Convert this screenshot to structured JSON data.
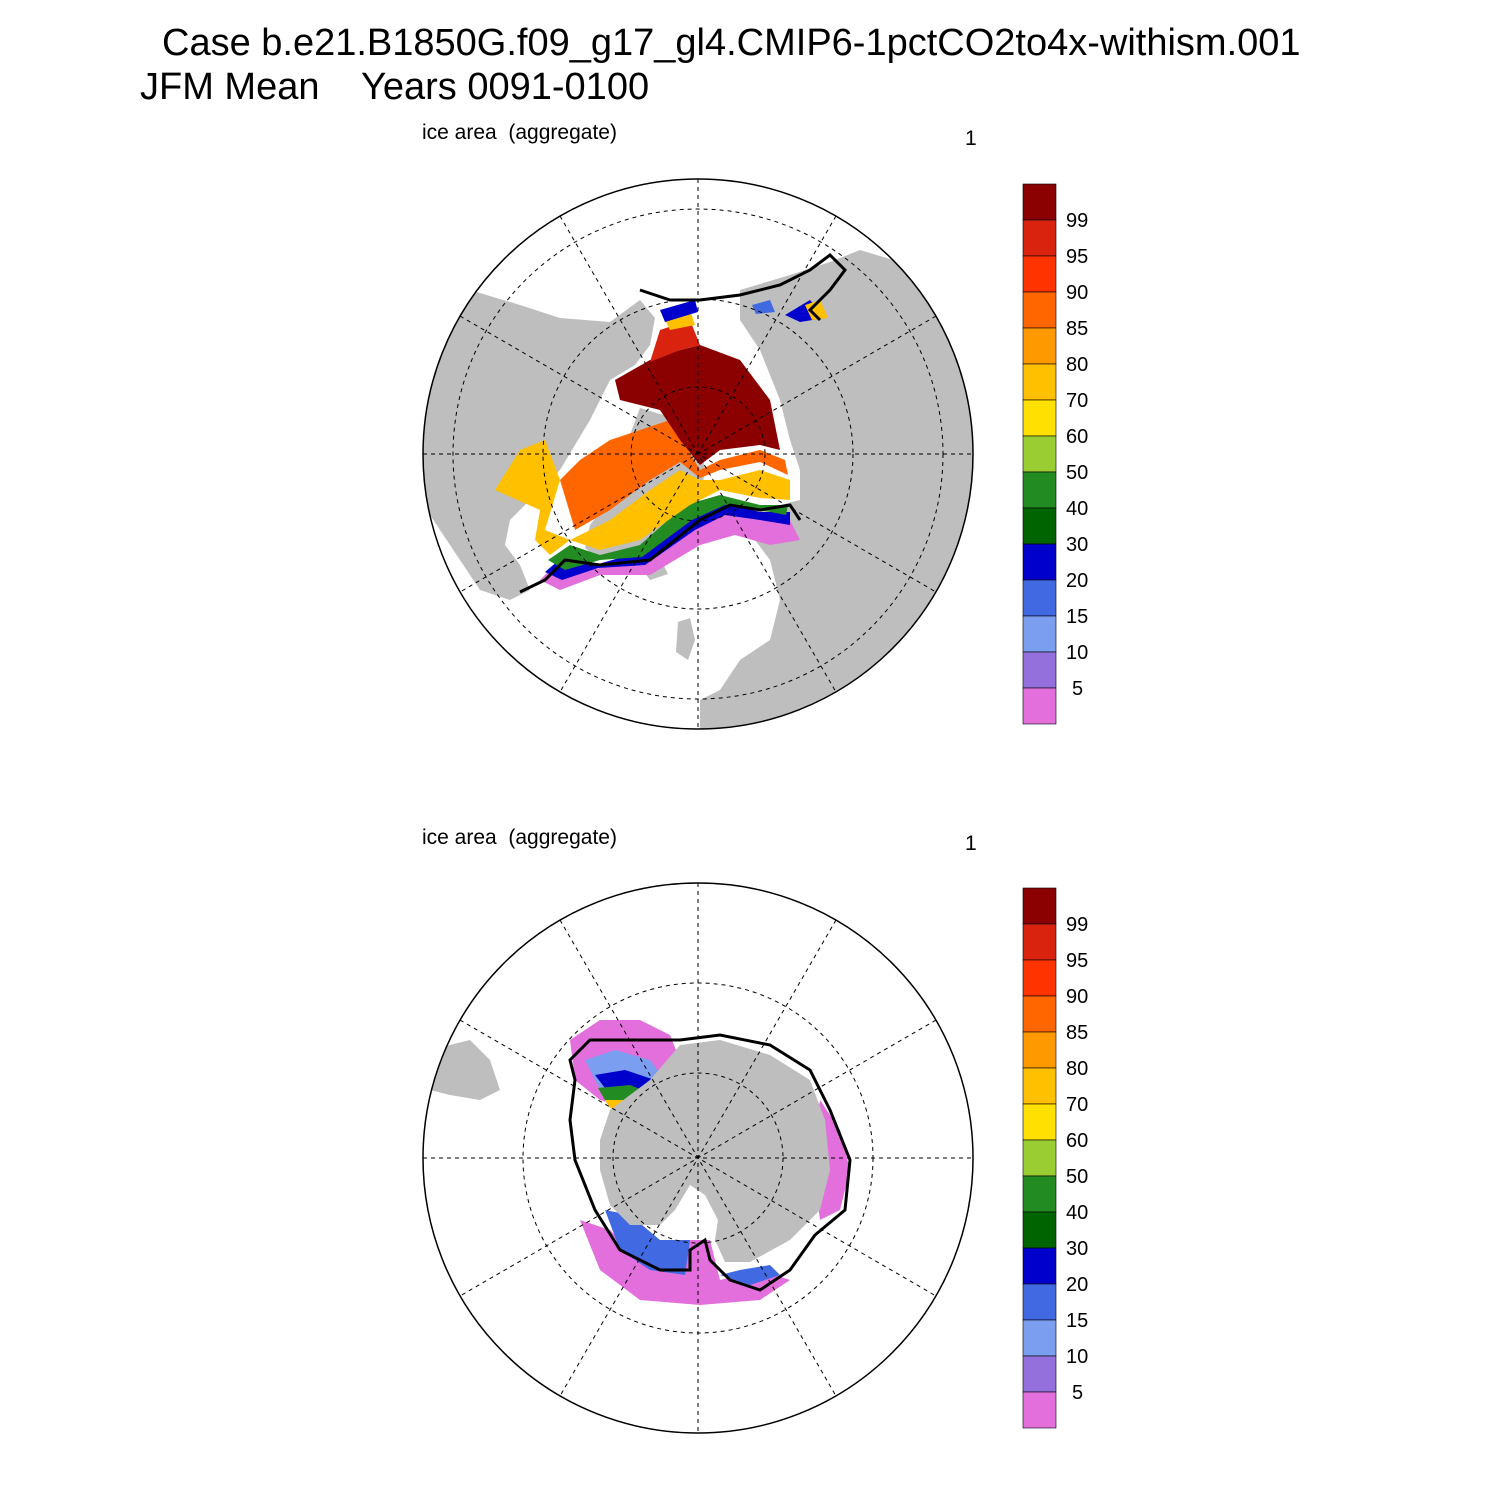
{
  "title": {
    "line1": "Case b.e21.B1850G.f09_g17_gl4.CMIP6-1pctCO2to4x-withism.001",
    "line2": "JFM Mean    Years 0091-0100"
  },
  "palette": {
    "levels": [
      "99",
      "95",
      "90",
      "85",
      "80",
      "70",
      "60",
      "50",
      "40",
      "30",
      "20",
      "15",
      "10",
      "5"
    ],
    "colors_top_to_bottom": [
      "#8b0000",
      "#d9230f",
      "#ff3300",
      "#ff6600",
      "#ff9900",
      "#ffc000",
      "#ffe000",
      "#9acd32",
      "#228b22",
      "#006400",
      "#0000cd",
      "#4169e1",
      "#7b9ef0",
      "#9370db",
      "#e36fdc"
    ]
  },
  "map_colors": {
    "land": "#bebebe",
    "ocean": "#ffffff",
    "contour": "#000000"
  },
  "panels": [
    {
      "id": "north",
      "hemisphere": "Northern Hemisphere",
      "variable_label": "ice area  (aggregate)",
      "panel_number": "1"
    },
    {
      "id": "south",
      "hemisphere": "Southern Hemisphere",
      "variable_label": "ice area  (aggregate)",
      "panel_number": "1"
    }
  ]
}
